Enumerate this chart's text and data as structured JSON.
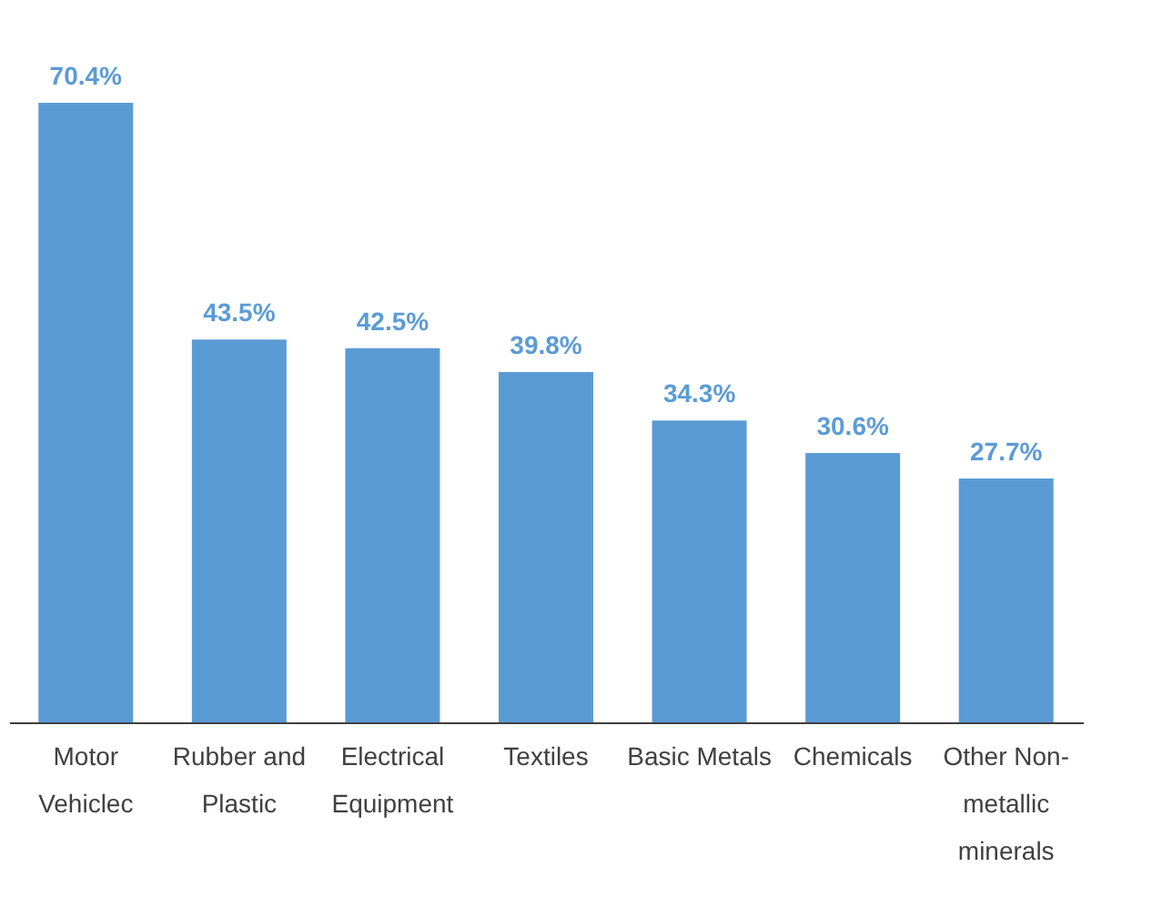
{
  "chart_data": {
    "type": "bar",
    "categories": [
      "Motor Vehiclec",
      "Rubber and Plastic",
      "Electrical Equipment",
      "Textiles",
      "Basic Metals",
      "Chemicals",
      "Other Non-metallic minerals"
    ],
    "values": [
      70.4,
      43.5,
      42.5,
      39.8,
      34.3,
      30.6,
      27.7
    ],
    "value_labels": [
      "70.4%",
      "43.5%",
      "42.5%",
      "39.8%",
      "34.3%",
      "30.6%",
      "27.7%"
    ],
    "color": "#5b9bd5",
    "tick_labels": "x"
  }
}
